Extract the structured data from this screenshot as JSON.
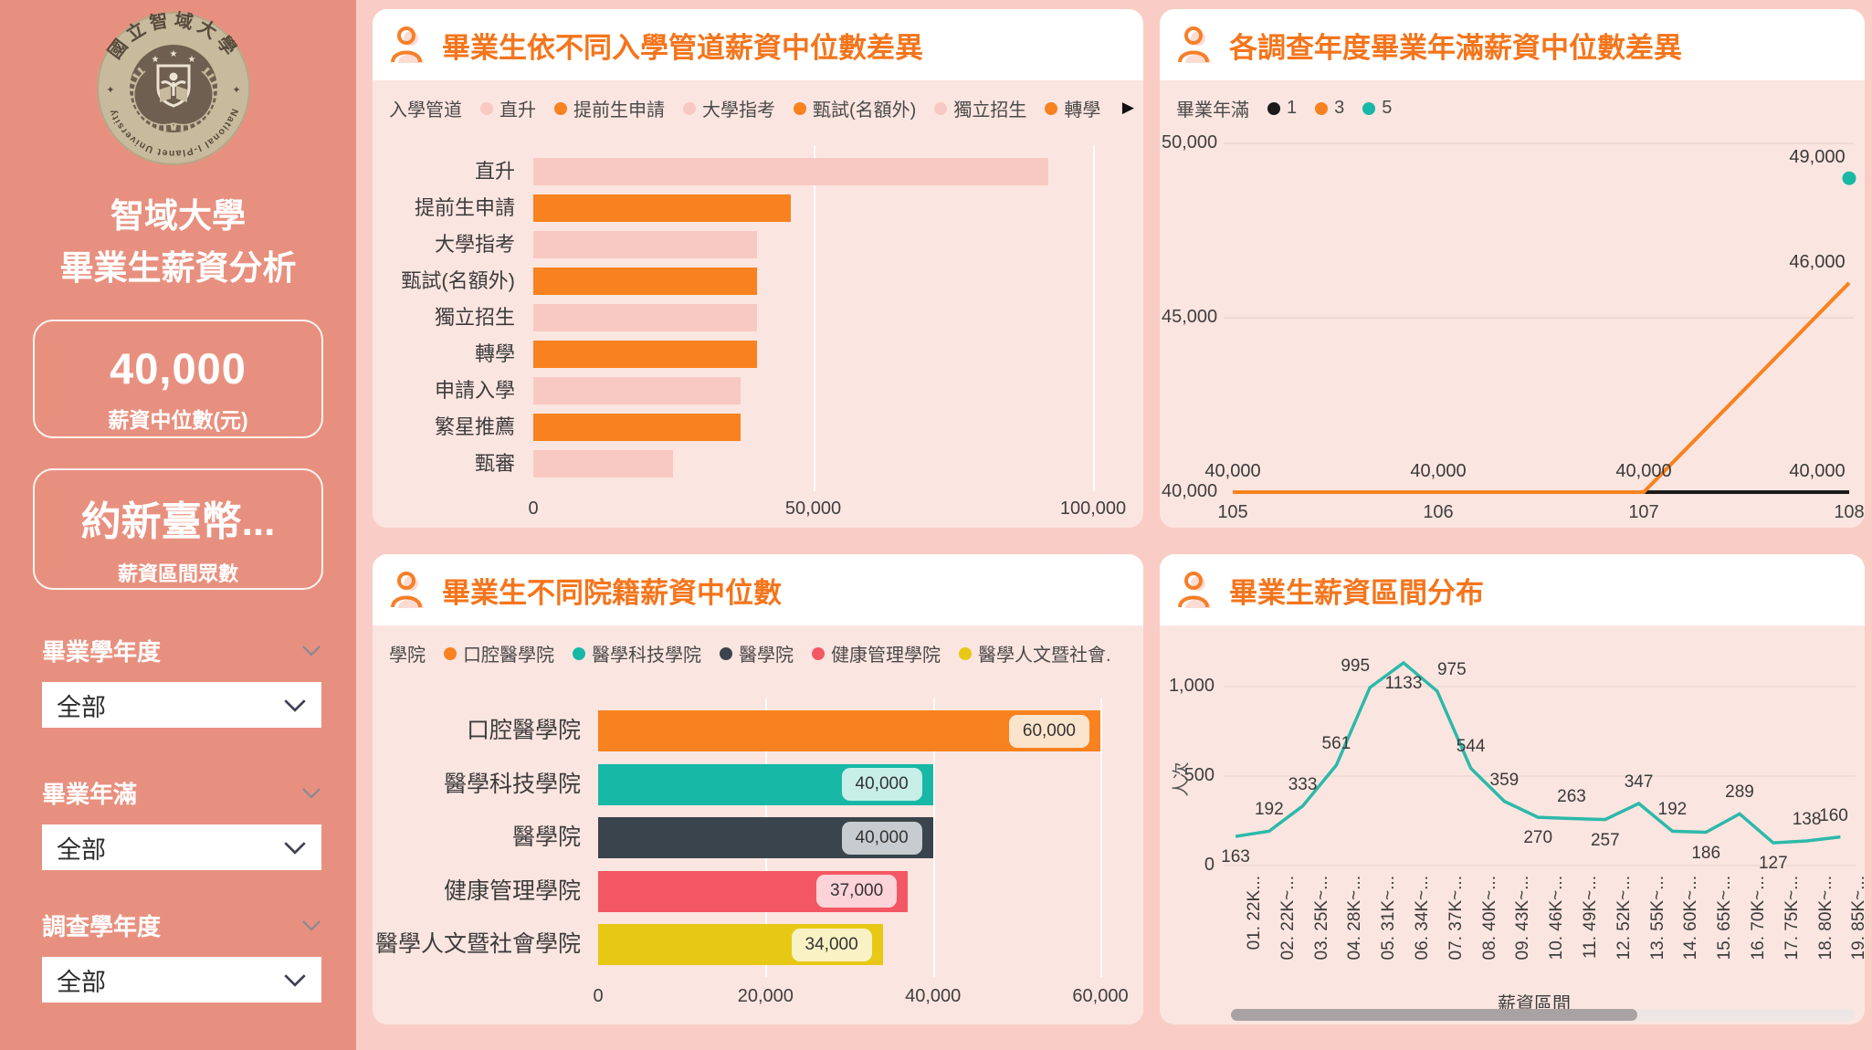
{
  "theme": {
    "sidebar_bg": "#e8907f",
    "canvas_bg": "#f9cdc5",
    "card_bg": "#fbe5e0",
    "title_orange": "#f4751c",
    "accent_orange": "#f8821f",
    "pale_pink": "#f8c9c2",
    "teal": "#17b8a6",
    "charcoal": "#39444c",
    "coral": "#f45764",
    "yellow": "#e7c815"
  },
  "sidebar": {
    "logo": {
      "top_text": "國立智域大學",
      "bottom_text": "National I-Planet University"
    },
    "title_line1": "智域大學",
    "title_line2": "畢業生薪資分析",
    "kpi_median": {
      "value": "40,000",
      "label": "薪資中位數(元)"
    },
    "kpi_mode": {
      "value": "約新臺幣...",
      "label": "薪資區間眾數"
    },
    "filters": [
      {
        "label": "畢業學年度",
        "value": "全部"
      },
      {
        "label": "畢業年滿",
        "value": "全部"
      },
      {
        "label": "調查學年度",
        "value": "全部"
      }
    ]
  },
  "chart_data": [
    {
      "id": "salary-by-admission",
      "type": "bar",
      "orientation": "horizontal",
      "title": "畢業生依不同入學管道薪資中位數差異",
      "legend_title": "入學管道",
      "legend": [
        {
          "label": "直升",
          "color": "#f8c9c2"
        },
        {
          "label": "提前生申請",
          "color": "#f8821f"
        },
        {
          "label": "大學指考",
          "color": "#f8c9c2"
        },
        {
          "label": "甄試(名額外)",
          "color": "#f8821f"
        },
        {
          "label": "獨立招生",
          "color": "#f8c9c2"
        },
        {
          "label": "轉學",
          "color": "#f8821f"
        }
      ],
      "legend_overflow_arrow": "▶",
      "categories": [
        "直升",
        "提前生申請",
        "大學指考",
        "甄試(名額外)",
        "獨立招生",
        "轉學",
        "申請入學",
        "繁星推薦",
        "甄審"
      ],
      "values": [
        92000,
        46000,
        40000,
        40000,
        40000,
        40000,
        37000,
        37000,
        25000
      ],
      "bar_colors": [
        "#f8c9c2",
        "#f8821f",
        "#f8c9c2",
        "#f8821f",
        "#f8c9c2",
        "#f8821f",
        "#f8c9c2",
        "#f8821f",
        "#f8c9c2"
      ],
      "xlim": [
        0,
        100000
      ],
      "xticks": [
        {
          "value": 0,
          "label": "0"
        },
        {
          "value": 50000,
          "label": "50,000"
        },
        {
          "value": 100000,
          "label": "100,000"
        }
      ]
    },
    {
      "id": "salary-by-survey-year",
      "type": "line",
      "title": "各調查年度畢業年滿薪資中位數差異",
      "legend_title": "畢業年滿",
      "x": [
        "105",
        "106",
        "107",
        "108"
      ],
      "ylim": [
        40000,
        50000
      ],
      "yticks": [
        {
          "value": 40000,
          "label": "40,000"
        },
        {
          "value": 45000,
          "label": "45,000"
        },
        {
          "value": 50000,
          "label": "50,000"
        }
      ],
      "series": [
        {
          "name": "1",
          "color": "#1a1a1a",
          "values": [
            40000,
            40000,
            40000,
            40000
          ],
          "labels": [
            "40,000",
            "40,000",
            "40,000",
            "40,000"
          ]
        },
        {
          "name": "3",
          "color": "#f8821f",
          "values": [
            40000,
            40000,
            40000,
            46000
          ],
          "labels": [
            null,
            null,
            null,
            "46,000"
          ]
        },
        {
          "name": "5",
          "color": "#17b8a6",
          "values": [
            null,
            null,
            null,
            49000
          ],
          "labels": [
            null,
            null,
            null,
            "49,000"
          ]
        }
      ],
      "legend_position": "top",
      "grid": true
    },
    {
      "id": "salary-by-college",
      "type": "bar",
      "orientation": "horizontal",
      "title": "畢業生不同院籍薪資中位數",
      "legend_title": "學院",
      "legend": [
        {
          "label": "口腔醫學院",
          "color": "#f8821f"
        },
        {
          "label": "醫學科技學院",
          "color": "#17b8a6"
        },
        {
          "label": "醫學院",
          "color": "#39444c"
        },
        {
          "label": "健康管理學院",
          "color": "#f45764"
        },
        {
          "label": "醫學人文暨社會...",
          "color": "#e7c815"
        }
      ],
      "categories": [
        "口腔醫學院",
        "醫學科技學院",
        "醫學院",
        "健康管理學院",
        "醫學人文暨社會學院"
      ],
      "values": [
        60000,
        40000,
        40000,
        37000,
        34000
      ],
      "value_labels": [
        "60,000",
        "40,000",
        "40,000",
        "37,000",
        "34,000"
      ],
      "bar_colors": [
        "#f8821f",
        "#17b8a6",
        "#39444c",
        "#f45764",
        "#e7c815"
      ],
      "label_bg": [
        "#fbe4cc",
        "#c8eee8",
        "#c6cccf",
        "#fbd3d8",
        "#f9f2c4"
      ],
      "xlim": [
        0,
        60000
      ],
      "xticks": [
        {
          "value": 0,
          "label": "0"
        },
        {
          "value": 20000,
          "label": "20,000"
        },
        {
          "value": 40000,
          "label": "40,000"
        },
        {
          "value": 60000,
          "label": "60,000"
        }
      ]
    },
    {
      "id": "salary-range-distribution",
      "type": "line",
      "title": "畢業生薪資區間分布",
      "xlabel": "薪資區間",
      "ylabel": "人次",
      "categories": [
        "01. 22K...",
        "02. 22K~...",
        "03. 25K~...",
        "04. 28K~...",
        "05. 31K~...",
        "06. 34K~...",
        "07. 37K~...",
        "08. 40K~...",
        "09. 43K~...",
        "10. 46K~...",
        "11. 49K~...",
        "12. 52K~...",
        "13. 55K~...",
        "14. 60K~...",
        "15. 65K~...",
        "16. 70K~...",
        "17. 75K~...",
        "18. 80K~...",
        "19. 85K~..."
      ],
      "values": [
        163,
        192,
        333,
        561,
        995,
        1133,
        975,
        544,
        359,
        270,
        263,
        257,
        347,
        192,
        186,
        289,
        127,
        138,
        160
      ],
      "line_color": "#2cb9a9",
      "ylim": [
        0,
        1200
      ],
      "yticks": [
        {
          "value": 0,
          "label": "0"
        },
        {
          "value": 500,
          "label": "500"
        },
        {
          "value": 1000,
          "label": "1,000"
        }
      ],
      "has_hscrollbar": true,
      "grid": true
    }
  ]
}
